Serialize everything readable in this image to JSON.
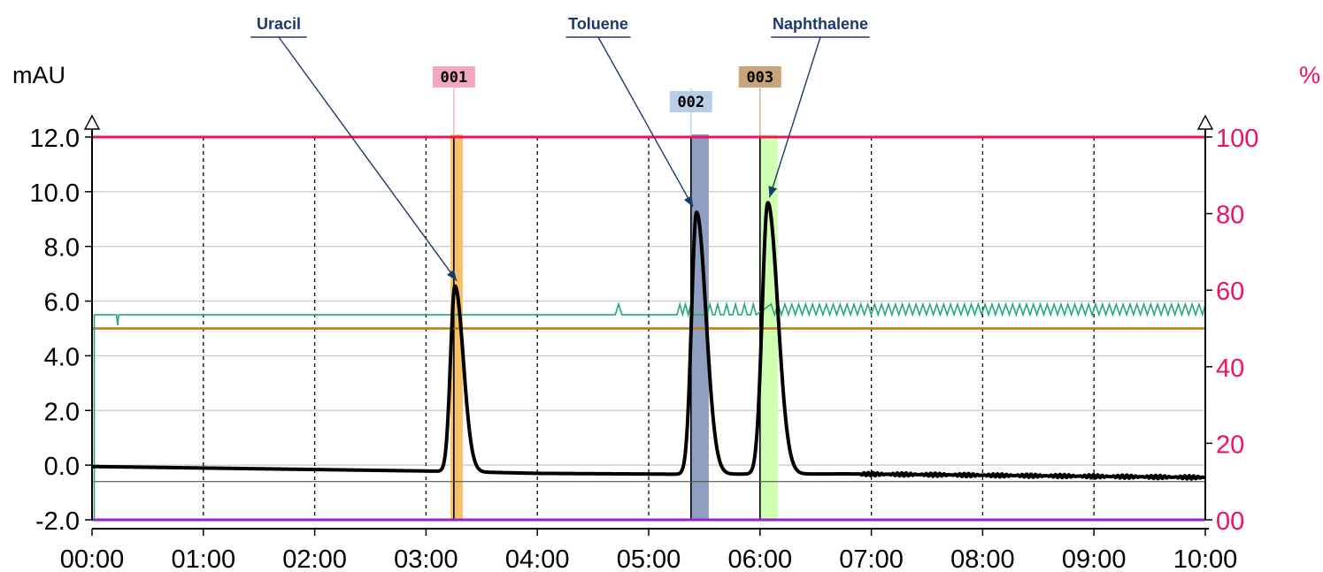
{
  "chart_data": {
    "type": "line",
    "x_axis": {
      "ticks": [
        "00:00",
        "01:00",
        "02:00",
        "03:00",
        "04:00",
        "05:00",
        "06:00",
        "07:00",
        "08:00",
        "09:00",
        "10:00"
      ],
      "range_min": [
        0,
        10
      ],
      "grid": "vertical dashed"
    },
    "y_left": {
      "unit": "mAU",
      "range": [
        -2.0,
        12.0
      ],
      "ticks": [
        "12.0",
        "10.0",
        "8.0",
        "6.0",
        "4.0",
        "2.0",
        "0.0",
        "-2.0"
      ],
      "tick_values": [
        12,
        10,
        8,
        6,
        4,
        2,
        0,
        -2
      ],
      "color": "#000000"
    },
    "y_right": {
      "unit": "%",
      "range": [
        0,
        100
      ],
      "ticks": [
        "100",
        "80",
        "60",
        "40",
        "20",
        "00"
      ],
      "tick_values": [
        100,
        80,
        60,
        40,
        20,
        0
      ],
      "color": "#ee1166"
    },
    "series": [
      {
        "color": "#000000",
        "kind": "chromatogram",
        "baseline": [
          [
            0,
            -0.05
          ],
          [
            3.1,
            -0.22
          ],
          [
            4.0,
            -0.3
          ],
          [
            5.2,
            -0.33
          ],
          [
            6.8,
            -0.32
          ],
          [
            10.0,
            -0.45
          ]
        ],
        "peaks": [
          {
            "t": 3.26,
            "height": 6.55,
            "sigma_left": 0.04,
            "sigma_right": 0.075
          },
          {
            "t": 5.43,
            "height": 9.25,
            "sigma_left": 0.045,
            "sigma_right": 0.085
          },
          {
            "t": 6.07,
            "height": 9.6,
            "sigma_left": 0.05,
            "sigma_right": 0.09
          }
        ]
      },
      {
        "color": "#ee1166",
        "kind": "right-axis level",
        "value_pct": 100
      },
      {
        "color": "#bb7711",
        "kind": "left-axis level",
        "value": 5.0
      },
      {
        "color": "#9922cc",
        "kind": "right-axis level",
        "value_pct": 0
      },
      {
        "color": "#22aa77",
        "kind": "pressure trace",
        "level_mau": 5.5,
        "oscillation_start": 5.3,
        "dense_start": 6.1
      }
    ],
    "fractions": [
      {
        "label": "001",
        "label_color": "#f4a8c0",
        "band_color": "#f6c068",
        "start": 3.22,
        "end": 3.33,
        "marker": 3.25
      },
      {
        "label": "002",
        "label_color": "#b8cde8",
        "band_color": "#8e9fc2",
        "start": 5.38,
        "end": 5.54,
        "marker": 5.38
      },
      {
        "label": "003",
        "label_color": "#c9a47a",
        "band_color": "#cfffb0",
        "start": 6.0,
        "end": 6.16,
        "marker": 6.0
      }
    ],
    "annotations": [
      {
        "text": "Uracil",
        "target_peak": 0
      },
      {
        "text": "Toluene",
        "target_peak": 1
      },
      {
        "text": "Naphthalene",
        "target_peak": 2
      }
    ]
  }
}
